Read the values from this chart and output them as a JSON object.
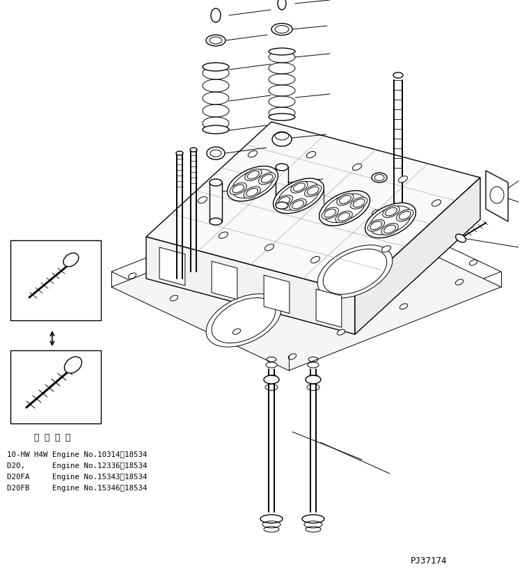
{
  "background_color": "#ffffff",
  "line_color": "#000000",
  "fig_width": 7.5,
  "fig_height": 8.27,
  "dpi": 100,
  "applicability_header": "適 用 号 機",
  "applicability_lines": [
    "10-HW H4W Engine No.10314～18534",
    "D20,      Engine No.12336～18534",
    "D20FA     Engine No.15343～18534",
    "D20FB     Engine No.15346～18534"
  ],
  "part_number": "PJ37174"
}
